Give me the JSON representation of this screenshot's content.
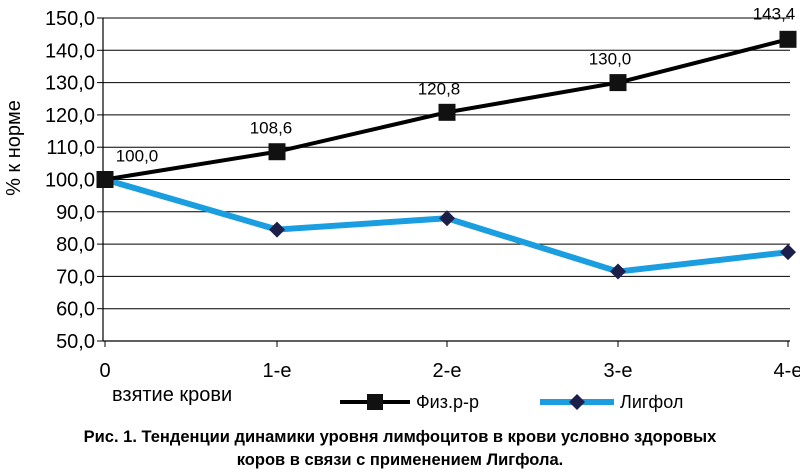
{
  "chart_data": {
    "type": "line",
    "title": "",
    "ylabel": "% к норме",
    "xlabel": "",
    "x_sublabel": "взятие крови",
    "categories": [
      "0",
      "1-е",
      "2-е",
      "3-е",
      "4-е"
    ],
    "ylim": [
      50,
      150
    ],
    "yticks": [
      "150,0",
      "140,0",
      "130,0",
      "120,0",
      "110,0",
      "100,0",
      "90,0",
      "80,0",
      "70,0",
      "60,0",
      "50,0"
    ],
    "grid": true,
    "legend_position": "bottom",
    "series": [
      {
        "name": "Физ.р-р",
        "values": [
          100.0,
          108.6,
          120.8,
          130.0,
          143.4
        ],
        "data_labels": [
          "100,0",
          "108,6",
          "120,8",
          "130,0",
          "143,4"
        ],
        "color": "#000000",
        "marker": "square"
      },
      {
        "name": "Лигфол",
        "values": [
          100.0,
          84.5,
          88.0,
          71.5,
          77.5
        ],
        "color": "#1a9ee0",
        "marker_color": "#1b1f4a",
        "marker": "diamond"
      }
    ]
  },
  "caption": {
    "line1": "Рис. 1. Тенденции динамики уровня лимфоцитов в крови условно здоровых",
    "line2": "коров в связи с применением Лигфола."
  }
}
